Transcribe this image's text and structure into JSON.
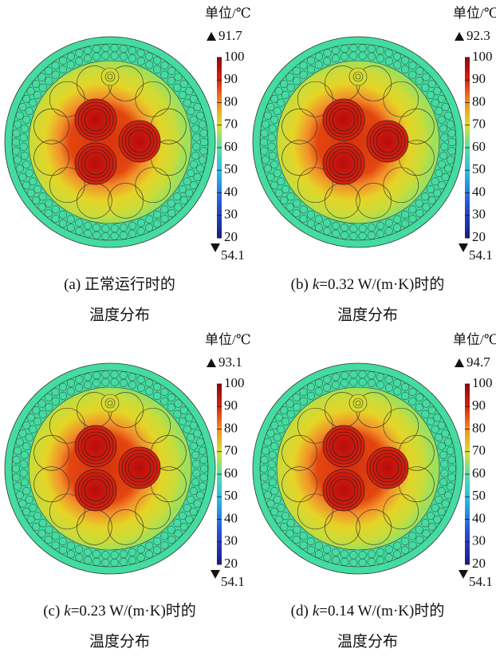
{
  "panels": [
    {
      "unit": "单位/℃",
      "max": 91.7,
      "min": 54.1,
      "ticks": [
        100,
        90,
        80,
        70,
        60,
        50,
        40,
        30,
        20
      ],
      "caption": {
        "label": "(a) 正常运行时的",
        "line2": "温度分布"
      }
    },
    {
      "unit": "单位/℃",
      "max": 92.3,
      "min": 54.1,
      "ticks": [
        100,
        90,
        80,
        70,
        60,
        50,
        40,
        30,
        20
      ],
      "caption": {
        "label": "(b)",
        "var": "k",
        "text": "=0.32 W/(m·K)时的",
        "line2": "温度分布"
      }
    },
    {
      "unit": "单位/℃",
      "max": 93.1,
      "min": 54.1,
      "ticks": [
        100,
        90,
        80,
        70,
        60,
        50,
        40,
        30,
        20
      ],
      "caption": {
        "label": "(c)",
        "var": "k",
        "text": "=0.23 W/(m·K)时的",
        "line2": "温度分布"
      }
    },
    {
      "unit": "单位/℃",
      "max": 94.7,
      "min": 54.1,
      "ticks": [
        100,
        90,
        80,
        70,
        60,
        50,
        40,
        30,
        20
      ],
      "caption": {
        "label": "(d)",
        "var": "k",
        "text": "=0.14 W/(m·K)时的",
        "line2": "温度分布"
      }
    }
  ]
}
